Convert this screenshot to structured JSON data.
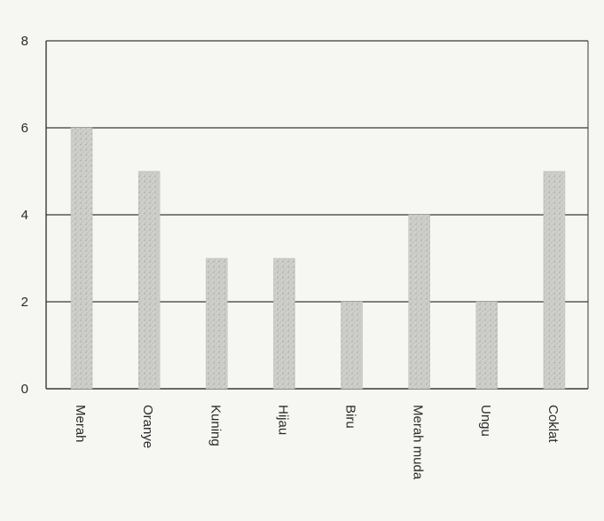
{
  "chart_data": {
    "type": "bar",
    "categories": [
      "Merah",
      "Oranye",
      "Kuning",
      "Hijau",
      "Biru",
      "Merah muda",
      "Ungu",
      "Coklat"
    ],
    "values": [
      6,
      5,
      3,
      3,
      2,
      4,
      2,
      5
    ],
    "ylim": [
      0,
      8
    ],
    "yticks": [
      0,
      2,
      4,
      6,
      8
    ],
    "grid": "horizontal",
    "legend": "none",
    "title": "",
    "xlabel": "",
    "ylabel": ""
  },
  "colors": {
    "background": "#f6f6f3",
    "bar_fill": "#c9c9c6",
    "bar_speckle": "#9a9a96",
    "gridline": "#3a3a3a",
    "text": "#2a2a2a"
  }
}
